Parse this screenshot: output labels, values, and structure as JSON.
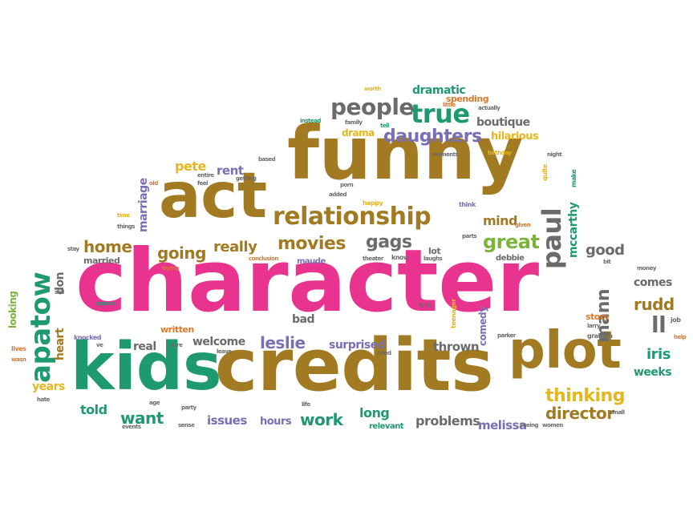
{
  "words": {
    "character": "character",
    "credits": "credits",
    "funny": "funny",
    "act": "act",
    "kids": "kids",
    "plot": "plot",
    "relationship": "relationship",
    "apatow": "apatow",
    "paul": "paul",
    "true": "true",
    "people": "people",
    "daughters": "daughters",
    "movies": "movies",
    "going": "going",
    "home": "home",
    "really": "really",
    "gags": "gags",
    "great": "great",
    "mann": "mann",
    "thinking": "thinking",
    "director": "director",
    "leslie": "leslie",
    "want": "want",
    "work": "work",
    "mccarthy": "mccarthy",
    "dramatic": "dramatic",
    "boutique": "boutique",
    "hilarious": "hilarious",
    "pete": "pete",
    "rent": "rent",
    "marriage": "marriage",
    "mind": "mind",
    "good": "good",
    "comes": "comes",
    "rudd": "rudd",
    "ll": "ll",
    "iris": "iris",
    "weeks": "weeks",
    "told": "told",
    "long": "long",
    "problems": "problems",
    "melissa": "melissa",
    "issues": "issues",
    "hours": "hours",
    "thrown": "thrown",
    "surprised": "surprised",
    "welcome": "welcome",
    "real": "real",
    "bad": "bad",
    "heart": "heart",
    "years": "years",
    "looking": "looking",
    "don": "don",
    "married": "married",
    "written": "written",
    "comedy": "comedy",
    "lot": "lot",
    "spending": "spending",
    "drama": "drama",
    "relevant": "relevant",
    "story": "story",
    "maude": "maude",
    "debbie": "debbie",
    "knocked": "knocked",
    "graham": "graham",
    "job": "job",
    "lives": "lives",
    "worth": "worth",
    "little": "little",
    "actually": "actually",
    "instead": "instead",
    "family": "family",
    "tell": "tell",
    "moments": "moments",
    "birthday": "birthday",
    "night": "night",
    "based": "based",
    "entire": "entire",
    "feel": "feel",
    "getting": "getting",
    "porn": "porn",
    "added": "added",
    "happy": "happy",
    "think": "think",
    "given": "given",
    "quite": "quite",
    "make": "make",
    "old": "old",
    "time": "time",
    "things": "things",
    "stay": "stay",
    "conclusion": "conclusion",
    "trying": "trying",
    "theater": "theater",
    "know": "know",
    "laughs": "laughs",
    "parts": "parts",
    "bit": "bit",
    "money": "money",
    "sell": "sell",
    "scenes": "scenes",
    "lines": "lines",
    "teenager": "teenager",
    "parker": "parker",
    "larry": "larry",
    "help": "help",
    "sure": "sure",
    "leave": "leave",
    "need": "need",
    "ve": "ve",
    "wasn": "wasn",
    "hate": "hate",
    "age": "age",
    "party": "party",
    "life": "life",
    "sense": "sense",
    "events": "events",
    "seeing": "seeing",
    "women": "women",
    "small": "small"
  },
  "colors": {
    "pink": "#e8338f",
    "brown": "#a27a22",
    "teal": "#1f9a70",
    "gray": "#6b6b6b",
    "purple": "#7a6fb3",
    "yellow": "#e5b71d",
    "orange": "#d9792a",
    "green": "#7ab43a",
    "red": "#d9342b"
  }
}
